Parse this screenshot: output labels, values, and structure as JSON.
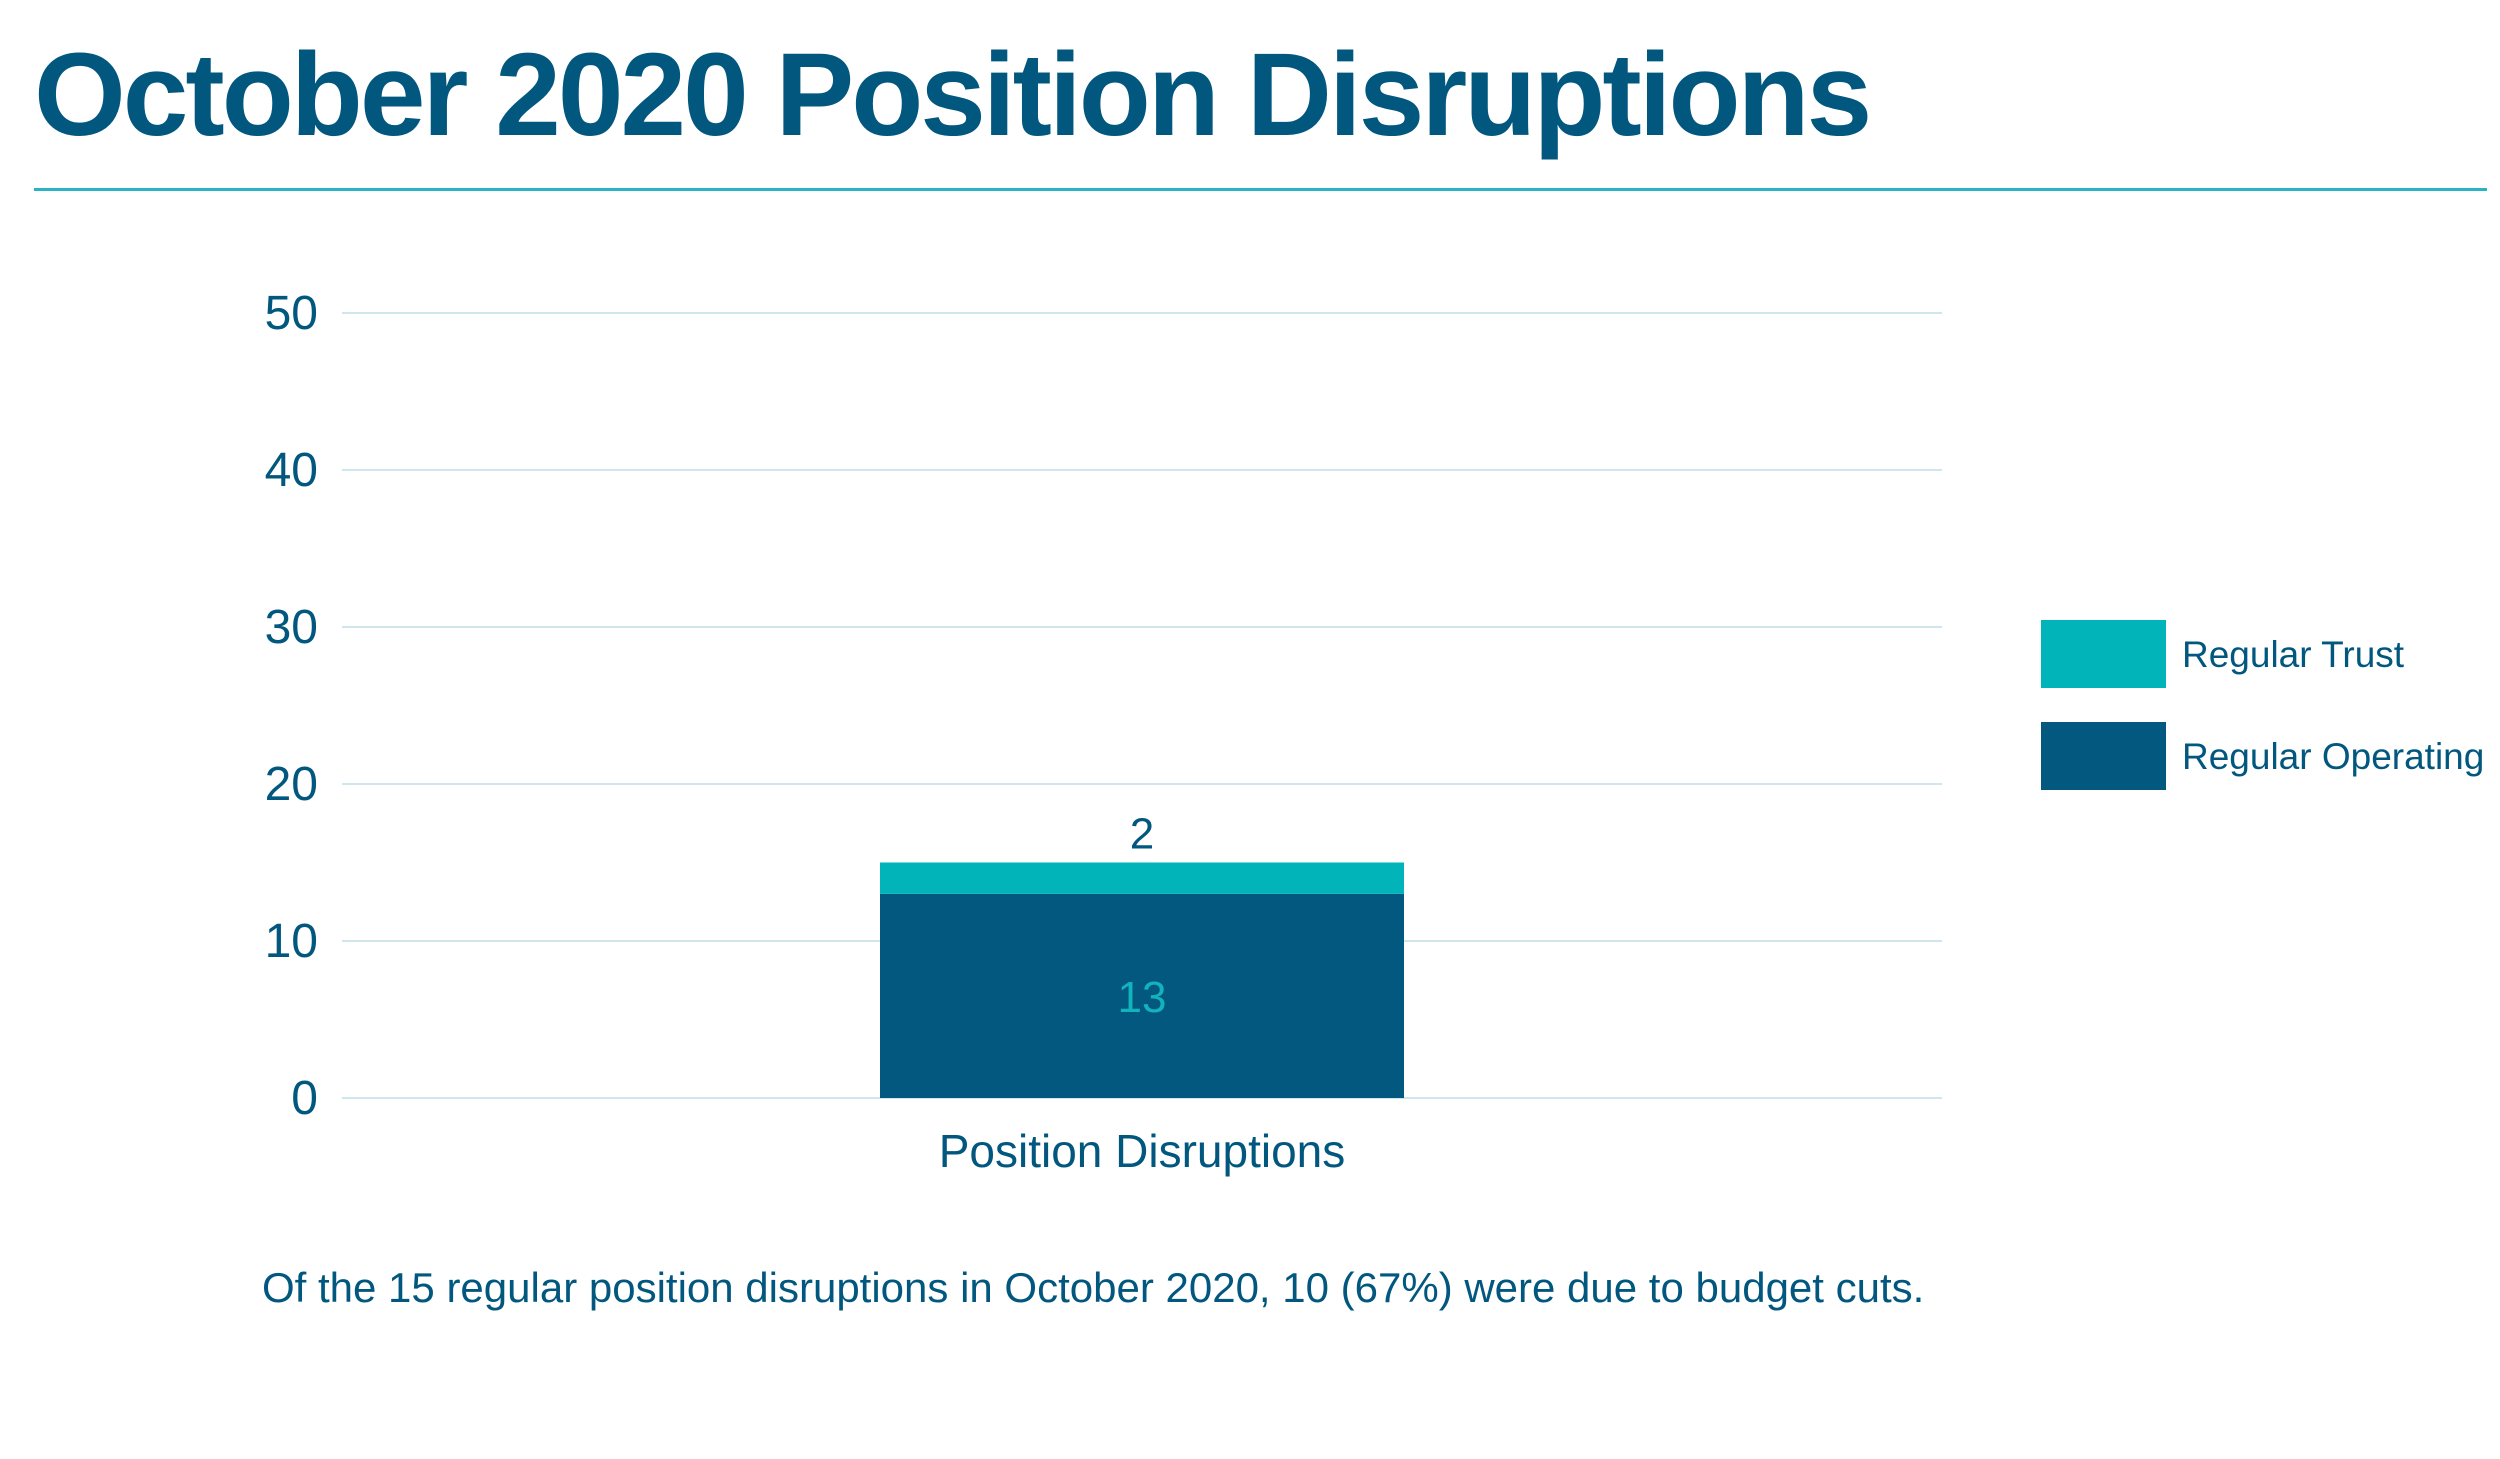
{
  "title": "October 2020 Position Disruptions",
  "caption": "Of the 15 regular position disruptions in October 2020, 10 (67%) were due to budget cuts.",
  "colors": {
    "title": "#02577f",
    "rule": "#2ab3c4",
    "gridline": "#cfe6ec",
    "axis_text": "#02577f",
    "regular_trust": "#00b4b9",
    "regular_operating": "#02587f",
    "label_on_dark": "#13b3bd"
  },
  "chart_data": {
    "type": "bar",
    "stacked": true,
    "categories": [
      "Position Disruptions"
    ],
    "series": [
      {
        "name": "Regular Operating",
        "values": [
          13
        ],
        "color": "#02587f"
      },
      {
        "name": "Regular Trust",
        "values": [
          2
        ],
        "color": "#00b4b9"
      }
    ],
    "ylim": [
      0,
      50
    ],
    "yticks": [
      0,
      10,
      20,
      30,
      40,
      50
    ],
    "grid": true,
    "legend": {
      "position": "right",
      "order": [
        "Regular Trust",
        "Regular Operating"
      ]
    },
    "data_labels": true
  }
}
